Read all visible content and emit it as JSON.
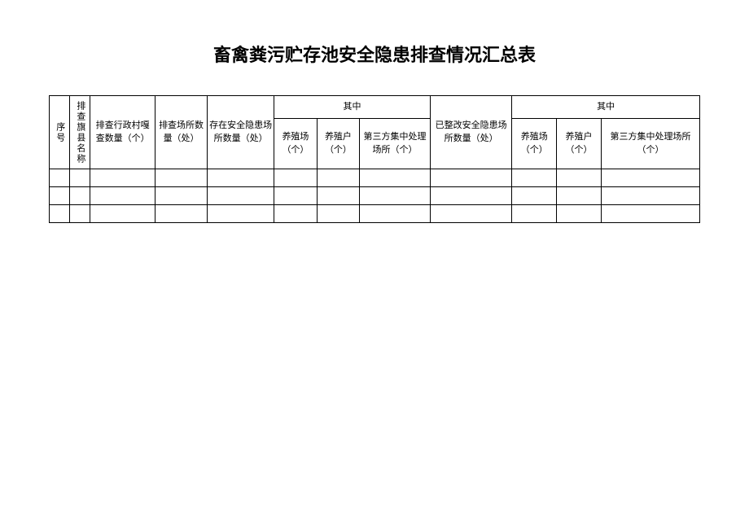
{
  "title": "畜禽粪污贮存池安全隐患排查情况汇总表",
  "table": {
    "headers": {
      "seq": "序号",
      "county_name": "排查旗县名称",
      "village_count": "排查行政村嘎查数量（个）",
      "place_count": "排查场所数量（处）",
      "hidden_danger_count": "存在安全隐患场所数量（处）",
      "among_1": "其中",
      "farm_1": "养殖场（个）",
      "household_1": "养殖户（个）",
      "third_party_1": "第三方集中处理场所（个）",
      "rectified_count": "已整改安全隐患场所数量（处）",
      "among_2": "其中",
      "farm_2": "养殖场（个）",
      "household_2": "养殖户（个）",
      "third_party_2": "第三方集中处理场所（个）"
    },
    "columns": [
      {
        "key": "col-seq",
        "width": 22
      },
      {
        "key": "col-name",
        "width": 22
      },
      {
        "key": "col-village",
        "width": 70
      },
      {
        "key": "col-place",
        "width": 56
      },
      {
        "key": "col-hidden",
        "width": 72
      },
      {
        "key": "col-farm1",
        "width": 46
      },
      {
        "key": "col-house1",
        "width": 46
      },
      {
        "key": "col-third1",
        "width": 76
      },
      {
        "key": "col-fixed",
        "width": 88
      },
      {
        "key": "col-farm2",
        "width": 48
      },
      {
        "key": "col-house2",
        "width": 48
      },
      {
        "key": "col-third2",
        "width": 106
      }
    ],
    "rows": [
      [
        "",
        "",
        "",
        "",
        "",
        "",
        "",
        "",
        "",
        "",
        "",
        ""
      ],
      [
        "",
        "",
        "",
        "",
        "",
        "",
        "",
        "",
        "",
        "",
        "",
        ""
      ],
      [
        "",
        "",
        "",
        "",
        "",
        "",
        "",
        "",
        "",
        "",
        "",
        ""
      ]
    ],
    "border_color": "#000000",
    "background_color": "#ffffff",
    "text_color": "#000000",
    "header_fontsize": 11,
    "title_fontsize": 22
  }
}
